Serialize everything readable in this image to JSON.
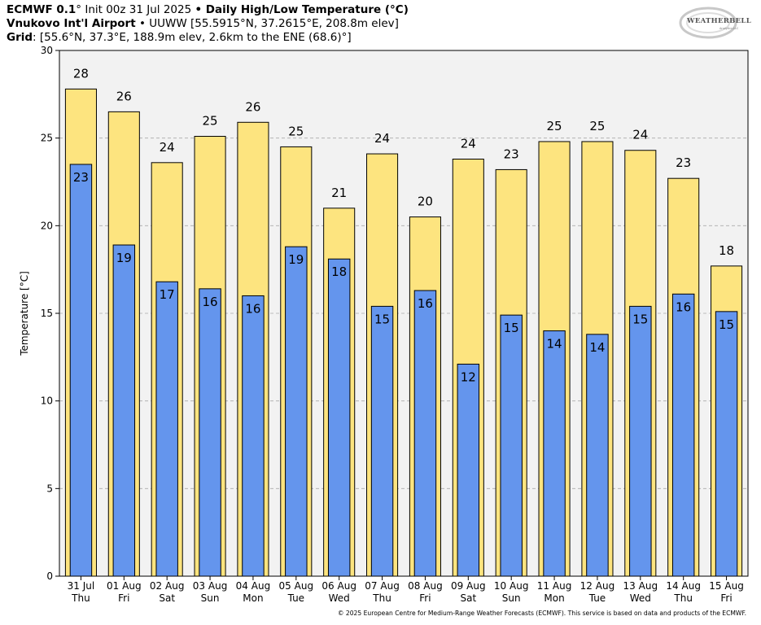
{
  "header": {
    "line1_bold_a": "ECMWF 0.1",
    "line1_deg": "°",
    "line1_init": " Init 00z 31 Jul 2025 ",
    "line1_bullet": "•",
    "line1_bold_b": " Daily High/Low Temperature (°C)",
    "line2_bold": "Vnukovo Int'l Airport",
    "line2_rest": " • UUWW [55.5915°N, 37.2615°E, 208.8m elev]",
    "line3_bold": "Grid",
    "line3_rest": ": [55.6°N, 37.3°E, 188.9m elev, 2.6km to the ENE (68.6)°]"
  },
  "logo": {
    "text": "WEATHERBELL",
    "sub": "Analytics LLC"
  },
  "footer": "© 2025 European Centre for Medium-Range Weather Forecasts (ECMWF). This service is based on data and products of the ECMWF.",
  "colors": {
    "high": "#fde47f",
    "low": "#6495ed",
    "plot_bg": "#f2f2f2",
    "grid": "#aaaaaa"
  },
  "chart_data": {
    "type": "bar",
    "ylabel": "Temperature [°C]",
    "ylim": [
      0,
      30
    ],
    "yticks": [
      0,
      5,
      10,
      15,
      20,
      25,
      30
    ],
    "grid": true,
    "categories": [
      "31 Jul",
      "01 Aug",
      "02 Aug",
      "03 Aug",
      "04 Aug",
      "05 Aug",
      "06 Aug",
      "07 Aug",
      "08 Aug",
      "09 Aug",
      "10 Aug",
      "11 Aug",
      "12 Aug",
      "13 Aug",
      "14 Aug",
      "15 Aug"
    ],
    "weekdays": [
      "Thu",
      "Fri",
      "Sat",
      "Sun",
      "Mon",
      "Tue",
      "Wed",
      "Thu",
      "Fri",
      "Sat",
      "Sun",
      "Mon",
      "Tue",
      "Wed",
      "Thu",
      "Fri"
    ],
    "series": [
      {
        "values": [
          27.8,
          26.5,
          23.6,
          25.1,
          25.9,
          24.5,
          21.0,
          24.1,
          20.5,
          23.8,
          23.2,
          24.8,
          24.8,
          24.3,
          22.7,
          17.7
        ],
        "labels": [
          "28",
          "26",
          "24",
          "25",
          "26",
          "25",
          "21",
          "24",
          "20",
          "24",
          "23",
          "25",
          "25",
          "24",
          "23",
          "18"
        ]
      },
      {
        "values": [
          23.5,
          18.9,
          16.8,
          16.4,
          16.0,
          18.8,
          18.1,
          15.4,
          16.3,
          12.1,
          14.9,
          14.0,
          13.8,
          15.4,
          16.1,
          15.1
        ],
        "labels": [
          "23",
          "19",
          "17",
          "16",
          "16",
          "19",
          "18",
          "15",
          "16",
          "12",
          "15",
          "14",
          "14",
          "15",
          "16",
          "15"
        ]
      }
    ]
  }
}
